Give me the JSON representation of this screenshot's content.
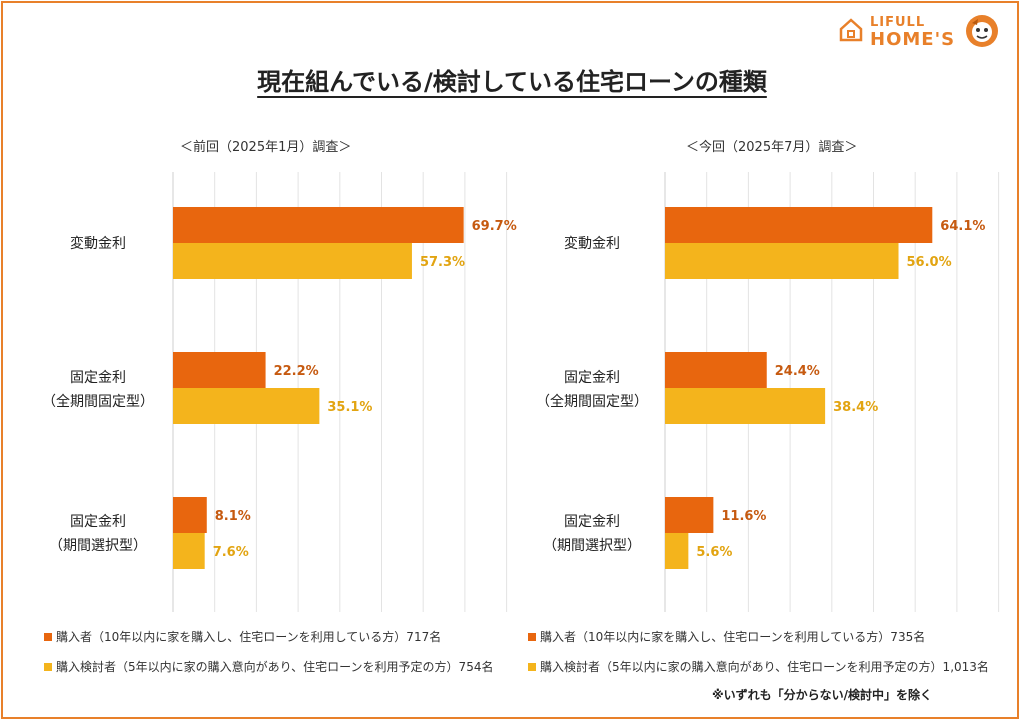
{
  "title": "現在組んでいる/検討している住宅ローンの種類",
  "logo": {
    "line1": "LIFULL",
    "line2": "HOME'S"
  },
  "colors": {
    "buyer": "#e8660e",
    "considering": "#f4b41c",
    "frame": "#e8802a"
  },
  "categories": [
    {
      "line1": "変動金利",
      "line2": ""
    },
    {
      "line1": "固定金利",
      "line2": "（全期間固定型）"
    },
    {
      "line1": "固定金利",
      "line2": "（期間選択型）"
    }
  ],
  "panels": [
    {
      "title": "＜前回（2025年1月）調査＞",
      "legend_buyer": "購入者（10年以内に家を購入し、住宅ローンを利用している方）717名",
      "legend_considering": "購入検討者（5年以内に家の購入意向があり、住宅ローンを利用予定の方）754名"
    },
    {
      "title": "＜今回（2025年7月）調査＞",
      "legend_buyer": "購入者（10年以内に家を購入し、住宅ローンを利用している方）735名",
      "legend_considering": "購入検討者（5年以内に家の購入意向があり、住宅ローンを利用予定の方）1,013名"
    }
  ],
  "note": "※いずれも「分からない/検討中」を除く",
  "chart_data": [
    {
      "type": "bar",
      "title": "＜前回（2025年1月）調査＞",
      "categories": [
        "変動金利",
        "固定金利（全期間固定型）",
        "固定金利（期間選択型）"
      ],
      "series": [
        {
          "name": "購入者（10年以内に家を購入し、住宅ローンを利用している方）717名",
          "values": [
            69.7,
            22.2,
            8.1
          ]
        },
        {
          "name": "購入検討者（5年以内に家の購入意向があり、住宅ローンを利用予定の方）754名",
          "values": [
            57.3,
            35.1,
            7.6
          ]
        }
      ],
      "xlim": [
        0,
        80
      ],
      "grid": true,
      "orientation": "horizontal",
      "value_labels": [
        "69.7%",
        "22.2%",
        "8.1%",
        "57.3%",
        "35.1%",
        "7.6%"
      ]
    },
    {
      "type": "bar",
      "title": "＜今回（2025年7月）調査＞",
      "categories": [
        "変動金利",
        "固定金利（全期間固定型）",
        "固定金利（期間選択型）"
      ],
      "series": [
        {
          "name": "購入者（10年以内に家を購入し、住宅ローンを利用している方）735名",
          "values": [
            64.1,
            24.4,
            11.6
          ]
        },
        {
          "name": "購入検討者（5年以内に家の購入意向があり、住宅ローンを利用予定の方）1,013名",
          "values": [
            56.0,
            38.4,
            5.6
          ]
        }
      ],
      "xlim": [
        0,
        80
      ],
      "grid": true,
      "orientation": "horizontal",
      "value_labels": [
        "64.1%",
        "24.4%",
        "11.6%",
        "56.0%",
        "38.4%",
        "5.6%"
      ]
    }
  ]
}
